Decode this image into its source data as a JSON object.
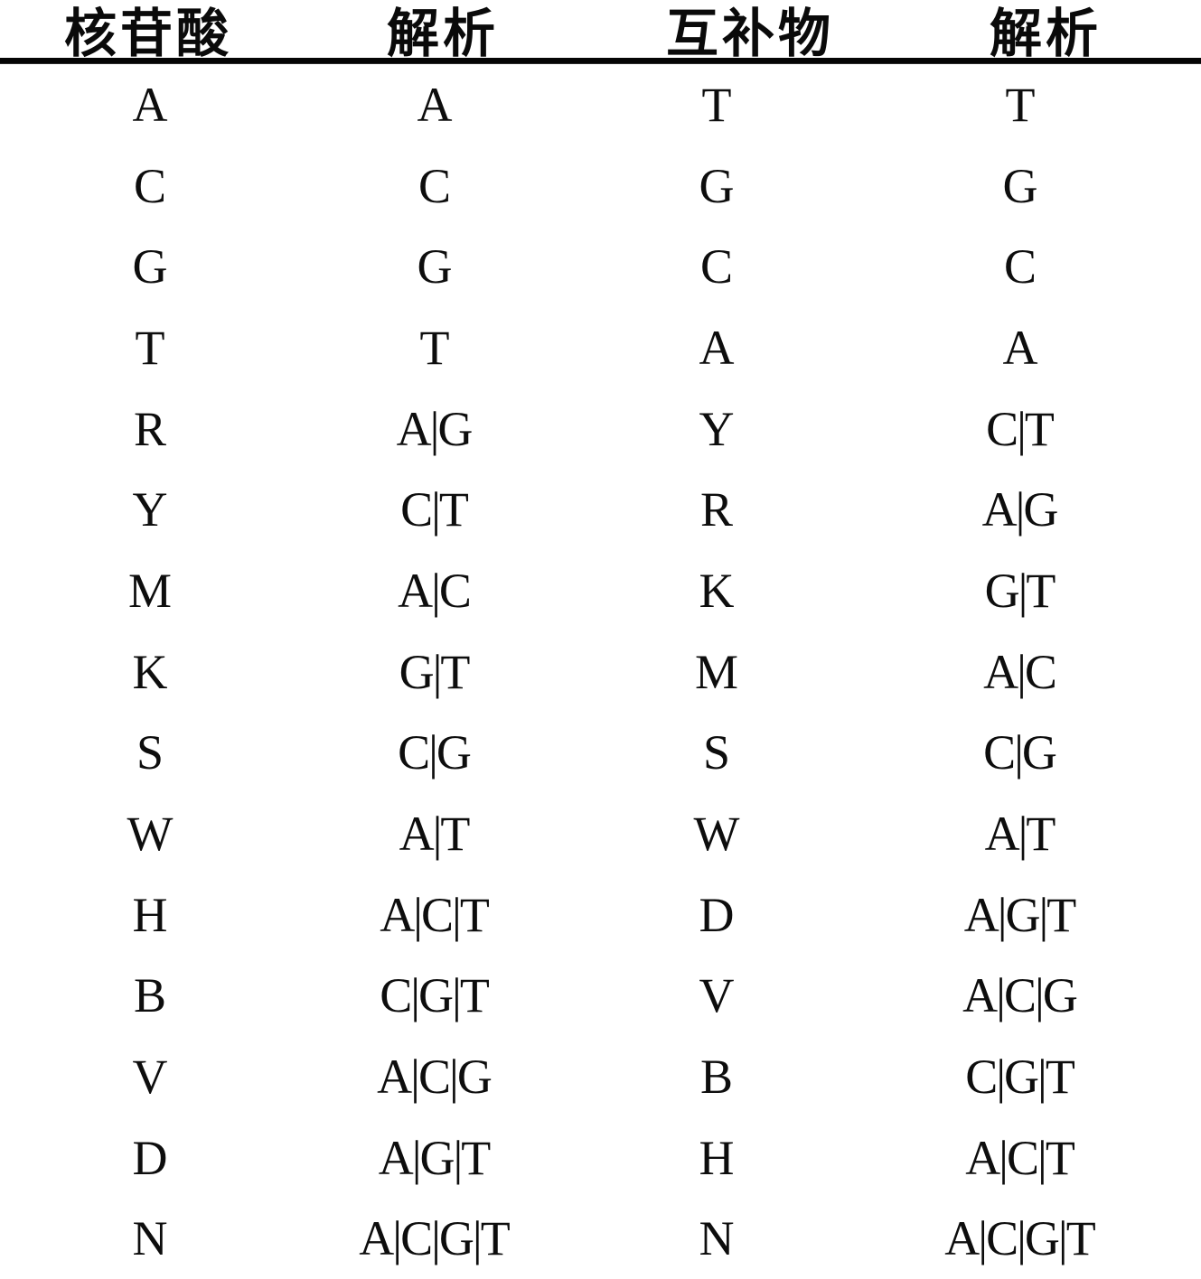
{
  "page": {
    "paper_color": "#ffffff",
    "ink_color": "#0b0b0b"
  },
  "table": {
    "headers": [
      {
        "id": "nucleotide",
        "label": "核苷酸"
      },
      {
        "id": "resolution",
        "label": "解析"
      },
      {
        "id": "complement",
        "label": "互补物"
      },
      {
        "id": "complement_resolution",
        "label": "解析"
      }
    ],
    "rows": [
      [
        "A",
        "A",
        "T",
        "T"
      ],
      [
        "C",
        "C",
        "G",
        "G"
      ],
      [
        "G",
        "G",
        "C",
        "C"
      ],
      [
        "T",
        "T",
        "A",
        "A"
      ],
      [
        "R",
        "A|G",
        "Y",
        "C|T"
      ],
      [
        "Y",
        "C|T",
        "R",
        "A|G"
      ],
      [
        "M",
        "A|C",
        "K",
        "G|T"
      ],
      [
        "K",
        "G|T",
        "M",
        "A|C"
      ],
      [
        "S",
        "C|G",
        "S",
        "C|G"
      ],
      [
        "W",
        "A|T",
        "W",
        "A|T"
      ],
      [
        "H",
        "A|C|T",
        "D",
        "A|G|T"
      ],
      [
        "B",
        "C|G|T",
        "V",
        "A|C|G"
      ],
      [
        "V",
        "A|C|G",
        "B",
        "C|G|T"
      ],
      [
        "D",
        "A|G|T",
        "H",
        "A|C|T"
      ],
      [
        "N",
        "A|C|G|T",
        "N",
        "A|C|G|T"
      ]
    ]
  }
}
